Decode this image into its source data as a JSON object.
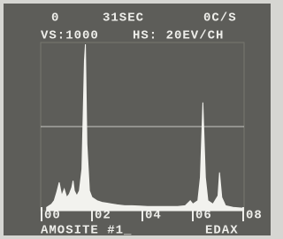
{
  "chart_data": {
    "type": "area",
    "header": [
      "0",
      "31SEC",
      "0C/S"
    ],
    "settings": [
      "VS:1000",
      "HS: 20EV/CH"
    ],
    "sample_label": "AMOSITE #1_",
    "brand": "EDAX",
    "x": [
      0.2,
      0.4,
      0.5,
      0.6,
      0.7,
      0.8,
      0.9,
      1.0,
      1.1,
      1.2,
      1.25,
      1.3,
      1.4,
      1.5,
      1.6,
      1.7,
      1.74,
      1.8,
      1.9,
      2.0,
      2.2,
      2.4,
      2.6,
      2.8,
      3.0,
      3.3,
      3.6,
      3.9,
      4.2,
      4.5,
      4.8,
      5.1,
      5.4,
      5.7,
      5.9,
      6.0,
      6.2,
      6.3,
      6.4,
      6.5,
      6.6,
      6.8,
      7.0,
      7.06,
      7.15,
      7.3,
      7.6,
      8.0
    ],
    "values": [
      20,
      40,
      60,
      110,
      170,
      90,
      130,
      80,
      100,
      140,
      180,
      120,
      90,
      120,
      250,
      900,
      1000,
      400,
      120,
      80,
      60,
      50,
      45,
      40,
      35,
      30,
      30,
      28,
      25,
      25,
      25,
      25,
      25,
      30,
      60,
      40,
      60,
      200,
      650,
      200,
      60,
      40,
      90,
      230,
      80,
      30,
      20,
      15
    ],
    "color": "#f2f2ee",
    "xlim": [
      0,
      8
    ],
    "xticks": [
      {
        "value": 0,
        "label": "00"
      },
      {
        "value": 2,
        "label": "02"
      },
      {
        "value": 4,
        "label": "04"
      },
      {
        "value": 6,
        "label": "06"
      },
      {
        "value": 8,
        "label": "08"
      }
    ],
    "ylim": [
      0,
      1000
    ]
  }
}
